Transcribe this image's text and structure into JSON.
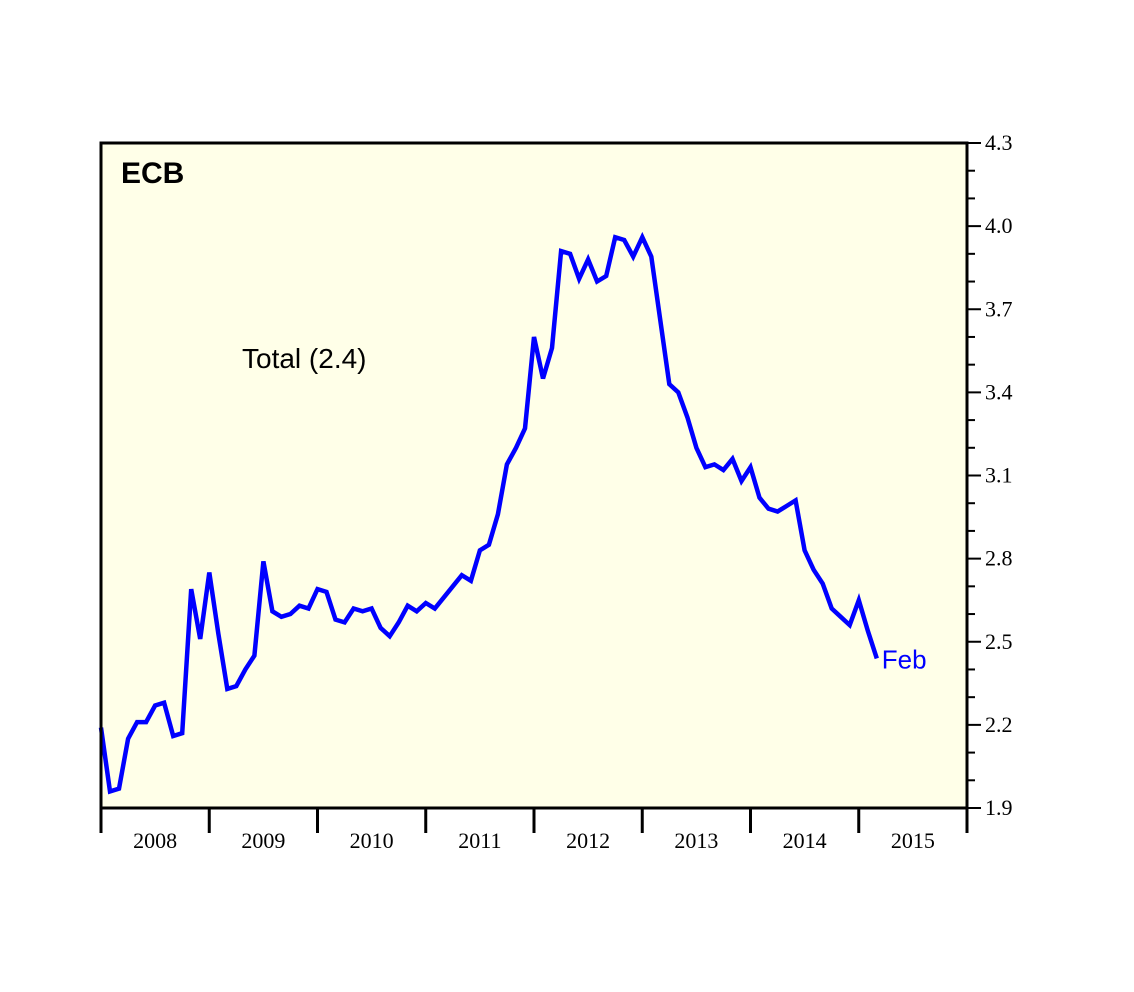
{
  "chart_data": {
    "type": "line",
    "title": "ECB",
    "annotation": "Total (2.4)",
    "end_label": "Feb",
    "xlabel": "",
    "ylabel": "",
    "y_axis_side": "right",
    "ylim": [
      1.9,
      4.3
    ],
    "y_ticks": [
      "1.9",
      "2.2",
      "2.5",
      "2.8",
      "3.1",
      "3.4",
      "3.7",
      "4.0",
      "4.3"
    ],
    "y_minor_step": 0.1,
    "x_tick_labels": [
      "2008",
      "2009",
      "2010",
      "2011",
      "2012",
      "2013",
      "2014",
      "2015"
    ],
    "xlim": [
      "2007-12",
      "2015-12"
    ],
    "grid": false,
    "legend": "none",
    "colors": {
      "line": "#0000ff",
      "plot_background": "#ffffe8",
      "axis": "#000000"
    },
    "series": [
      {
        "x": [
          "2007-12",
          "2008-01",
          "2008-02",
          "2008-03",
          "2008-04",
          "2008-05",
          "2008-06",
          "2008-07",
          "2008-08",
          "2008-09",
          "2008-10",
          "2008-11",
          "2008-12",
          "2009-01",
          "2009-02",
          "2009-03",
          "2009-04",
          "2009-05",
          "2009-06",
          "2009-07",
          "2009-08",
          "2009-09",
          "2009-10",
          "2009-11",
          "2009-12",
          "2010-01",
          "2010-02",
          "2010-03",
          "2010-04",
          "2010-05",
          "2010-06",
          "2010-07",
          "2010-08",
          "2010-09",
          "2010-10",
          "2010-11",
          "2010-12",
          "2011-01",
          "2011-02",
          "2011-03",
          "2011-04",
          "2011-05",
          "2011-06",
          "2011-07",
          "2011-08",
          "2011-09",
          "2011-10",
          "2011-11",
          "2011-12",
          "2012-01",
          "2012-02",
          "2012-03",
          "2012-04",
          "2012-05",
          "2012-06",
          "2012-07",
          "2012-08",
          "2012-09",
          "2012-10",
          "2012-11",
          "2012-12",
          "2013-01",
          "2013-02",
          "2013-03",
          "2013-04",
          "2013-05",
          "2013-06",
          "2013-07",
          "2013-08",
          "2013-09",
          "2013-10",
          "2013-11",
          "2013-12",
          "2014-01",
          "2014-02",
          "2014-03",
          "2014-04",
          "2014-05",
          "2014-06",
          "2014-07",
          "2014-08",
          "2014-09",
          "2014-10",
          "2014-11",
          "2014-12",
          "2015-01",
          "2015-02"
        ],
        "values": [
          2.19,
          1.96,
          1.97,
          2.15,
          2.21,
          2.21,
          2.27,
          2.28,
          2.16,
          2.17,
          2.69,
          2.51,
          2.75,
          2.53,
          2.33,
          2.34,
          2.4,
          2.45,
          2.79,
          2.61,
          2.59,
          2.6,
          2.63,
          2.62,
          2.69,
          2.68,
          2.58,
          2.57,
          2.62,
          2.61,
          2.62,
          2.55,
          2.52,
          2.57,
          2.63,
          2.61,
          2.64,
          2.62,
          2.66,
          2.7,
          2.74,
          2.72,
          2.83,
          2.85,
          2.96,
          3.14,
          3.2,
          3.27,
          3.6,
          3.45,
          3.56,
          3.91,
          3.9,
          3.81,
          3.88,
          3.8,
          3.82,
          3.96,
          3.95,
          3.89,
          3.96,
          3.89,
          3.66,
          3.43,
          3.4,
          3.31,
          3.2,
          3.13,
          3.14,
          3.12,
          3.16,
          3.08,
          3.13,
          3.02,
          2.98,
          2.97,
          2.99,
          3.01,
          2.83,
          2.76,
          2.71,
          2.62,
          2.59,
          2.56,
          2.65,
          2.54,
          2.44
        ]
      }
    ]
  }
}
